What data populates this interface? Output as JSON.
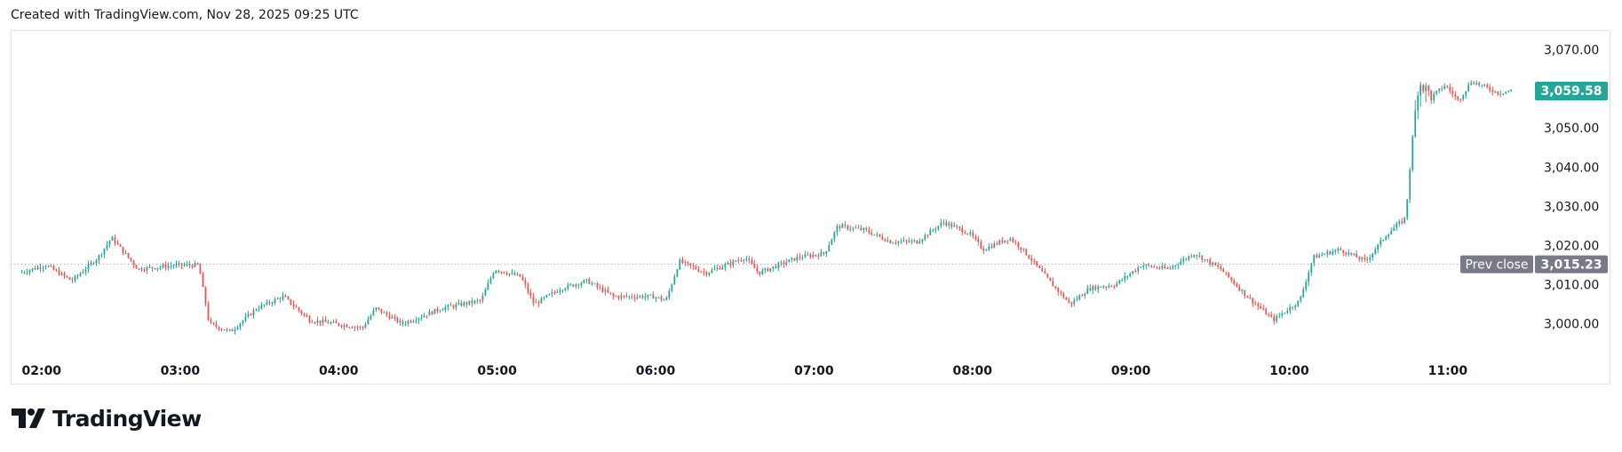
{
  "header": {
    "created_text": "Created with TradingView.com, Nov 28, 2025 09:25 UTC"
  },
  "brand": {
    "name": "TradingView"
  },
  "colors": {
    "up": "#26a69a",
    "down": "#ef5350",
    "last_price_bg": "#26a69a",
    "prev_close_bg": "#787b86"
  },
  "chart_data": {
    "type": "candlestick",
    "x_ticks": [
      "02:00",
      "03:00",
      "04:00",
      "05:00",
      "06:00",
      "07:00",
      "08:00",
      "09:00",
      "10:00",
      "11:00"
    ],
    "y_ticks": [
      "3,000.00",
      "3,010.00",
      "3,020.00",
      "3,030.00",
      "3,040.00",
      "3,050.00",
      "3,060.00",
      "3,070.00"
    ],
    "ylim": [
      2992,
      3075
    ],
    "last_price": {
      "value": 3059.58,
      "label": "3,059.58"
    },
    "prev_close": {
      "value": 3015.23,
      "label": "3,015.23",
      "text": "Prev close"
    },
    "series_close_path": [
      [
        "02:00",
        3013
      ],
      [
        "02:10",
        3015
      ],
      [
        "02:20",
        3011
      ],
      [
        "02:30",
        3017
      ],
      [
        "02:35",
        3022
      ],
      [
        "02:45",
        3014
      ],
      [
        "03:00",
        3015
      ],
      [
        "03:08",
        3015
      ],
      [
        "03:12",
        3000
      ],
      [
        "03:20",
        2998
      ],
      [
        "03:30",
        3004
      ],
      [
        "03:40",
        3007
      ],
      [
        "03:50",
        3001
      ],
      [
        "04:00",
        3000
      ],
      [
        "04:10",
        2999
      ],
      [
        "04:15",
        3004
      ],
      [
        "04:25",
        3000
      ],
      [
        "04:40",
        3004
      ],
      [
        "04:55",
        3006
      ],
      [
        "05:00",
        3014
      ],
      [
        "05:10",
        3012
      ],
      [
        "05:15",
        3005
      ],
      [
        "05:25",
        3009
      ],
      [
        "05:35",
        3011
      ],
      [
        "05:45",
        3007
      ],
      [
        "06:00",
        3007
      ],
      [
        "06:05",
        3006
      ],
      [
        "06:10",
        3016
      ],
      [
        "06:20",
        3013
      ],
      [
        "06:35",
        3017
      ],
      [
        "06:40",
        3013
      ],
      [
        "06:55",
        3017
      ],
      [
        "07:05",
        3018
      ],
      [
        "07:10",
        3025
      ],
      [
        "07:20",
        3024
      ],
      [
        "07:30",
        3021
      ],
      [
        "07:40",
        3021
      ],
      [
        "07:50",
        3026
      ],
      [
        "08:00",
        3023
      ],
      [
        "08:05",
        3019
      ],
      [
        "08:15",
        3022
      ],
      [
        "08:20",
        3019
      ],
      [
        "08:30",
        3011
      ],
      [
        "08:38",
        3005
      ],
      [
        "08:45",
        3009
      ],
      [
        "08:55",
        3010
      ],
      [
        "09:05",
        3015
      ],
      [
        "09:15",
        3014
      ],
      [
        "09:25",
        3018
      ],
      [
        "09:35",
        3014
      ],
      [
        "09:45",
        3007
      ],
      [
        "09:55",
        3001
      ],
      [
        "10:05",
        3006
      ],
      [
        "10:10",
        3017
      ],
      [
        "10:20",
        3019
      ],
      [
        "10:30",
        3016
      ],
      [
        "10:38",
        3023
      ],
      [
        "10:45",
        3027
      ],
      [
        "10:48",
        3050
      ],
      [
        "10:50",
        3062
      ],
      [
        "10:55",
        3058
      ],
      [
        "11:00",
        3061
      ],
      [
        "11:05",
        3057
      ],
      [
        "11:10",
        3062
      ],
      [
        "11:20",
        3059
      ],
      [
        "11:25",
        3059.58
      ]
    ]
  }
}
